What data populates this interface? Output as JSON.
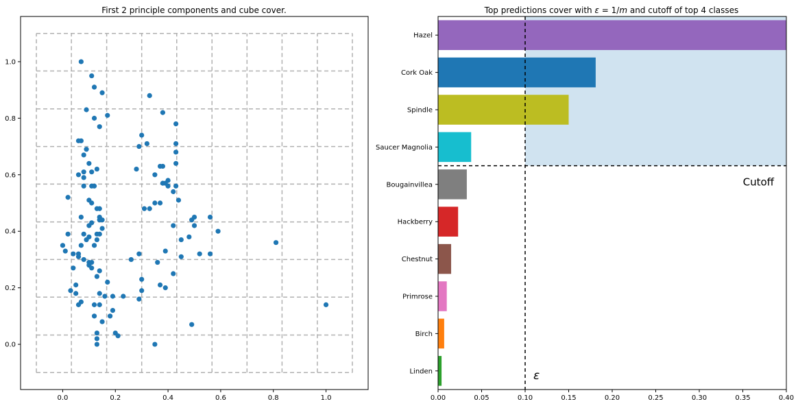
{
  "chart_data": [
    {
      "type": "scatter",
      "title": "First 2 principle components and cube cover.",
      "xlim": [
        -0.16,
        1.16
      ],
      "ylim": [
        -0.16,
        1.16
      ],
      "xticks": [
        0.0,
        0.2,
        0.4,
        0.6,
        0.8,
        1.0
      ],
      "yticks": [
        0.0,
        0.2,
        0.4,
        0.6,
        0.8,
        1.0
      ],
      "tick_labels_x": [
        "0.0",
        "0.2",
        "0.4",
        "0.6",
        "0.8",
        "1.0"
      ],
      "tick_labels_y": [
        "0.0",
        "0.2",
        "0.4",
        "0.6",
        "0.8",
        "1.0"
      ],
      "point_color": "#1f77b4",
      "grid_color": "#b0b0b0",
      "cover_x_edges": [
        -0.1,
        0.033,
        0.167,
        0.3,
        0.433,
        0.567,
        0.7,
        0.833,
        0.967,
        1.1
      ],
      "cover_y_edges": [
        -0.1,
        0.033,
        0.167,
        0.3,
        0.433,
        0.567,
        0.7,
        0.833,
        0.967,
        1.1
      ],
      "points": [
        [
          0.07,
          1.0
        ],
        [
          0.11,
          0.95
        ],
        [
          0.12,
          0.91
        ],
        [
          0.15,
          0.89
        ],
        [
          0.33,
          0.88
        ],
        [
          0.09,
          0.83
        ],
        [
          0.38,
          0.82
        ],
        [
          0.17,
          0.81
        ],
        [
          0.12,
          0.8
        ],
        [
          0.43,
          0.78
        ],
        [
          0.14,
          0.77
        ],
        [
          0.3,
          0.74
        ],
        [
          0.06,
          0.72
        ],
        [
          0.07,
          0.72
        ],
        [
          0.32,
          0.71
        ],
        [
          0.29,
          0.7
        ],
        [
          0.43,
          0.71
        ],
        [
          0.09,
          0.69
        ],
        [
          0.08,
          0.67
        ],
        [
          0.43,
          0.68
        ],
        [
          0.1,
          0.64
        ],
        [
          0.43,
          0.64
        ],
        [
          0.37,
          0.63
        ],
        [
          0.38,
          0.63
        ],
        [
          0.28,
          0.62
        ],
        [
          0.08,
          0.61
        ],
        [
          0.11,
          0.61
        ],
        [
          0.13,
          0.62
        ],
        [
          0.06,
          0.6
        ],
        [
          0.08,
          0.59
        ],
        [
          0.35,
          0.6
        ],
        [
          0.4,
          0.58
        ],
        [
          0.38,
          0.57
        ],
        [
          0.39,
          0.57
        ],
        [
          0.08,
          0.56
        ],
        [
          0.11,
          0.56
        ],
        [
          0.12,
          0.56
        ],
        [
          0.43,
          0.56
        ],
        [
          0.4,
          0.56
        ],
        [
          0.42,
          0.54
        ],
        [
          0.02,
          0.52
        ],
        [
          0.1,
          0.51
        ],
        [
          0.11,
          0.5
        ],
        [
          0.35,
          0.5
        ],
        [
          0.37,
          0.5
        ],
        [
          0.44,
          0.51
        ],
        [
          0.13,
          0.48
        ],
        [
          0.14,
          0.48
        ],
        [
          0.31,
          0.48
        ],
        [
          0.33,
          0.48
        ],
        [
          0.5,
          0.45
        ],
        [
          0.56,
          0.45
        ],
        [
          0.07,
          0.45
        ],
        [
          0.14,
          0.45
        ],
        [
          0.14,
          0.44
        ],
        [
          0.15,
          0.44
        ],
        [
          0.49,
          0.44
        ],
        [
          0.11,
          0.43
        ],
        [
          0.1,
          0.42
        ],
        [
          0.42,
          0.42
        ],
        [
          0.5,
          0.42
        ],
        [
          0.15,
          0.41
        ],
        [
          0.59,
          0.4
        ],
        [
          0.02,
          0.39
        ],
        [
          0.08,
          0.39
        ],
        [
          0.13,
          0.39
        ],
        [
          0.14,
          0.39
        ],
        [
          0.48,
          0.38
        ],
        [
          0.1,
          0.38
        ],
        [
          0.45,
          0.37
        ],
        [
          0.09,
          0.37
        ],
        [
          0.13,
          0.37
        ],
        [
          0.0,
          0.35
        ],
        [
          0.07,
          0.35
        ],
        [
          0.12,
          0.35
        ],
        [
          0.81,
          0.36
        ],
        [
          0.01,
          0.33
        ],
        [
          0.39,
          0.33
        ],
        [
          0.29,
          0.32
        ],
        [
          0.04,
          0.32
        ],
        [
          0.06,
          0.32
        ],
        [
          0.52,
          0.32
        ],
        [
          0.56,
          0.32
        ],
        [
          0.06,
          0.31
        ],
        [
          0.26,
          0.3
        ],
        [
          0.45,
          0.31
        ],
        [
          0.08,
          0.3
        ],
        [
          0.36,
          0.29
        ],
        [
          0.1,
          0.29
        ],
        [
          0.11,
          0.29
        ],
        [
          0.1,
          0.28
        ],
        [
          0.11,
          0.27
        ],
        [
          0.04,
          0.27
        ],
        [
          0.14,
          0.26
        ],
        [
          0.42,
          0.25
        ],
        [
          0.13,
          0.24
        ],
        [
          0.3,
          0.23
        ],
        [
          0.17,
          0.22
        ],
        [
          0.37,
          0.21
        ],
        [
          0.05,
          0.21
        ],
        [
          0.39,
          0.2
        ],
        [
          0.03,
          0.19
        ],
        [
          0.3,
          0.19
        ],
        [
          0.05,
          0.18
        ],
        [
          0.14,
          0.18
        ],
        [
          0.16,
          0.17
        ],
        [
          0.19,
          0.17
        ],
        [
          0.23,
          0.17
        ],
        [
          0.29,
          0.16
        ],
        [
          0.07,
          0.15
        ],
        [
          0.06,
          0.14
        ],
        [
          0.14,
          0.14
        ],
        [
          0.12,
          0.14
        ],
        [
          1.0,
          0.14
        ],
        [
          0.19,
          0.12
        ],
        [
          0.12,
          0.1
        ],
        [
          0.18,
          0.1
        ],
        [
          0.15,
          0.08
        ],
        [
          0.49,
          0.07
        ],
        [
          0.13,
          0.04
        ],
        [
          0.2,
          0.04
        ],
        [
          0.21,
          0.03
        ],
        [
          0.13,
          0.02
        ],
        [
          0.13,
          0.0
        ],
        [
          0.35,
          0.0
        ]
      ]
    },
    {
      "type": "bar",
      "orientation": "horizontal",
      "title_prefix": "Top predictions cover with ",
      "title_eps": "ε",
      "title_mid": " = 1/",
      "title_m": "m",
      "title_suffix": " and cutoff of top 4 classes",
      "xlim": [
        0.0,
        0.4
      ],
      "xticks": [
        0.0,
        0.05,
        0.1,
        0.15,
        0.2,
        0.25,
        0.3,
        0.35,
        0.4
      ],
      "tick_labels_x": [
        "0.00",
        "0.05",
        "0.10",
        "0.15",
        "0.20",
        "0.25",
        "0.30",
        "0.35",
        "0.40"
      ],
      "categories": [
        "Hazel",
        "Cork Oak",
        "Spindle",
        "Saucer Magnolia",
        "Bougainvillea",
        "Hackberry",
        "Chestnut",
        "Primrose",
        "Birch",
        "Linden"
      ],
      "values": [
        0.4,
        0.181,
        0.15,
        0.038,
        0.033,
        0.023,
        0.015,
        0.01,
        0.007,
        0.004
      ],
      "colors": [
        "#9467bd",
        "#1f77b4",
        "#bcbd22",
        "#17becf",
        "#7f7f7f",
        "#d62728",
        "#8c564b",
        "#e377c2",
        "#ff7f0e",
        "#2ca02c"
      ],
      "epsilon": 0.1,
      "epsilon_label": "ε",
      "cutoff_top_n": 4,
      "cutoff_label": "Cutoff",
      "highlight_color": "#d0e3f0"
    }
  ]
}
